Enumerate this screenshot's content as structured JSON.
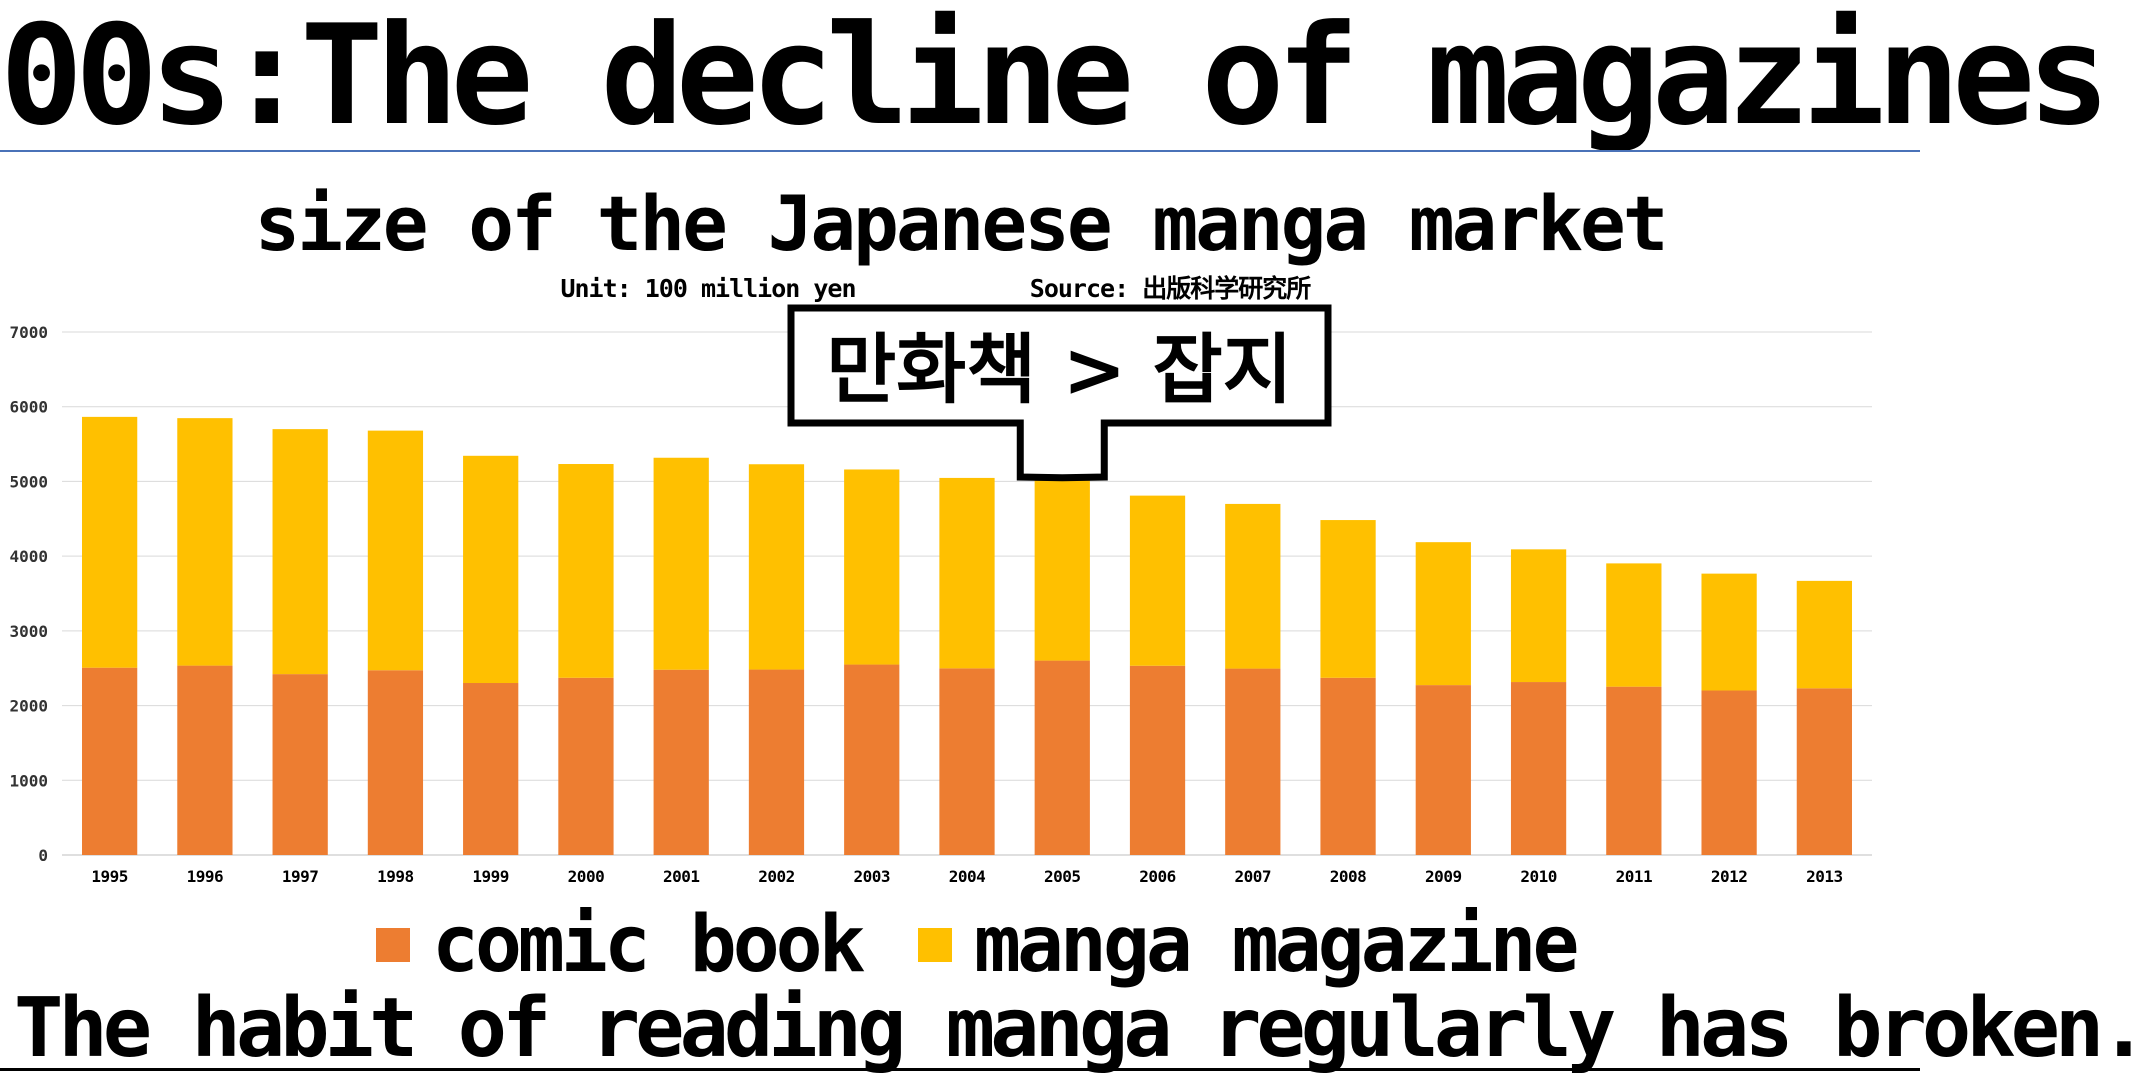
{
  "headline": "00s:The decline of magazines",
  "footer_text": "The habit of reading manga regularly has broken.",
  "chart_data": {
    "type": "bar",
    "stacked": true,
    "title": "size of the Japanese manga market",
    "unit_note": "Unit: 100 million yen",
    "source_note": "Source: 出版科学研究所",
    "callout": "만화책 > 잡지",
    "callout_year": "2005",
    "categories": [
      "1995",
      "1996",
      "1997",
      "1998",
      "1999",
      "2000",
      "2001",
      "2002",
      "2003",
      "2004",
      "2005",
      "2006",
      "2007",
      "2008",
      "2009",
      "2010",
      "2011",
      "2012",
      "2013"
    ],
    "series": [
      {
        "name": "comic book",
        "color": "#ED7D31",
        "values": [
          2507,
          2535,
          2421,
          2473,
          2302,
          2372,
          2480,
          2482,
          2549,
          2498,
          2602,
          2533,
          2495,
          2372,
          2274,
          2315,
          2253,
          2202,
          2231
        ]
      },
      {
        "name": "manga magazine",
        "color": "#FFC000",
        "values": [
          3357,
          3312,
          3279,
          3207,
          3041,
          2861,
          2837,
          2748,
          2611,
          2549,
          2421,
          2277,
          2204,
          2111,
          1913,
          1776,
          1650,
          1564,
          1438
        ]
      }
    ],
    "ylim": [
      0,
      7000
    ],
    "yticks": [
      0,
      1000,
      2000,
      3000,
      4000,
      5000,
      6000,
      7000
    ],
    "grid": true,
    "legend_position": "bottom"
  }
}
